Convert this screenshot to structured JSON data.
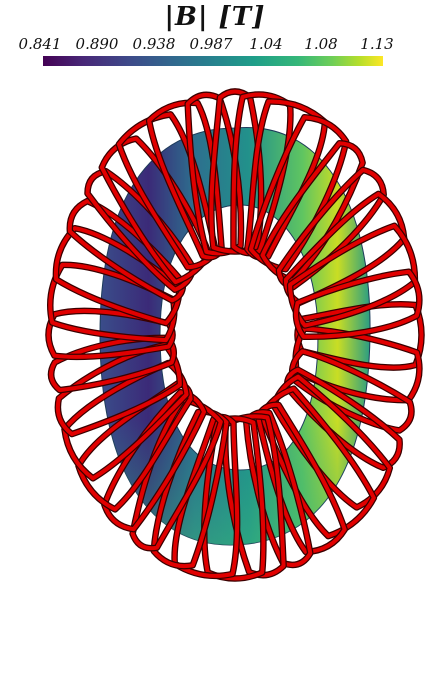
{
  "colorbar": {
    "title": "|B| [T]",
    "ticks": [
      "0.841",
      "0.890",
      "0.938",
      "0.987",
      "1.04",
      "1.08",
      "1.13"
    ],
    "colormap": "viridis",
    "colors": [
      "#440154",
      "#3e4989",
      "#26828e",
      "#35b779",
      "#fde725"
    ]
  },
  "scene": {
    "surface": "toroidal-plasma-surface",
    "coils": {
      "color": "#e10000",
      "count": 36
    }
  }
}
